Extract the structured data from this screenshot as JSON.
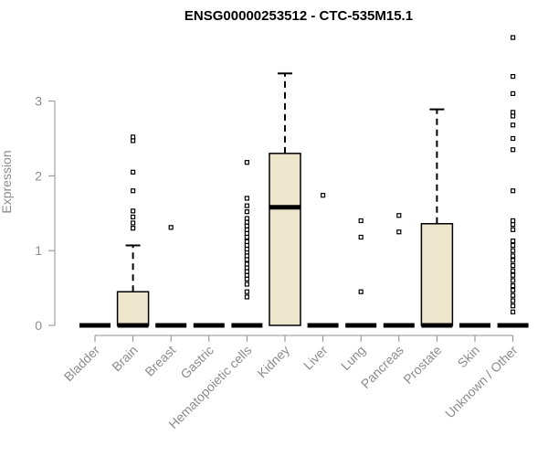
{
  "chart_data": {
    "type": "box",
    "title": "ENSG00000253512 - CTC-535M15.1",
    "xlabel": "",
    "ylabel": "Expression",
    "ylim": [
      0,
      3.9
    ],
    "yticks": [
      0,
      1,
      2,
      3
    ],
    "grid": false,
    "colors": {
      "box_fill": "#ede6cc",
      "box_stroke": "#000000",
      "axis": "#8c8c8c",
      "title": "#000000"
    },
    "categories": [
      "Bladder",
      "Brain",
      "Breast",
      "Gastric",
      "Hematopoietic cells",
      "Kidney",
      "Liver",
      "Lung",
      "Pancreas",
      "Prostate",
      "Skin",
      "Unknown / Other"
    ],
    "boxes": [
      {
        "category": "Bladder",
        "min": 0,
        "q1": 0,
        "median": 0,
        "q3": 0,
        "max": 0,
        "outliers": []
      },
      {
        "category": "Brain",
        "min": 0,
        "q1": 0,
        "median": 0,
        "q3": 0.45,
        "max": 1.07,
        "outliers": [
          1.3,
          1.37,
          1.45,
          1.53,
          1.8,
          2.05,
          2.47,
          2.52
        ]
      },
      {
        "category": "Breast",
        "min": 0,
        "q1": 0,
        "median": 0,
        "q3": 0,
        "max": 0,
        "outliers": [
          1.31
        ]
      },
      {
        "category": "Gastric",
        "min": 0,
        "q1": 0,
        "median": 0,
        "q3": 0,
        "max": 0,
        "outliers": []
      },
      {
        "category": "Hematopoietic cells",
        "min": 0,
        "q1": 0,
        "median": 0,
        "q3": 0,
        "max": 0,
        "outliers": [
          0.38,
          0.45,
          0.55,
          0.62,
          0.67,
          0.72,
          0.77,
          0.82,
          0.88,
          0.93,
          0.98,
          1.02,
          1.07,
          1.12,
          1.18,
          1.23,
          1.28,
          1.33,
          1.38,
          1.43,
          1.52,
          1.6,
          1.7,
          2.18
        ]
      },
      {
        "category": "Kidney",
        "min": 0,
        "q1": 0,
        "median": 1.58,
        "q3": 2.3,
        "max": 3.37,
        "outliers": []
      },
      {
        "category": "Liver",
        "min": 0,
        "q1": 0,
        "median": 0,
        "q3": 0,
        "max": 0,
        "outliers": [
          1.74
        ]
      },
      {
        "category": "Lung",
        "min": 0,
        "q1": 0,
        "median": 0,
        "q3": 0,
        "max": 0,
        "outliers": [
          0.45,
          1.18,
          1.4
        ]
      },
      {
        "category": "Pancreas",
        "min": 0,
        "q1": 0,
        "median": 0,
        "q3": 0,
        "max": 0,
        "outliers": [
          1.25,
          1.47
        ]
      },
      {
        "category": "Prostate",
        "min": 0,
        "q1": 0,
        "median": 0,
        "q3": 1.36,
        "max": 2.89,
        "outliers": []
      },
      {
        "category": "Skin",
        "min": 0,
        "q1": 0,
        "median": 0,
        "q3": 0,
        "max": 0,
        "outliers": []
      },
      {
        "category": "Unknown / Other",
        "min": 0,
        "q1": 0,
        "median": 0,
        "q3": 0,
        "max": 0,
        "outliers": [
          0.18,
          0.26,
          0.33,
          0.4,
          0.47,
          0.53,
          0.6,
          0.67,
          0.73,
          0.8,
          0.87,
          0.93,
          1.0,
          1.07,
          1.13,
          1.28,
          1.35,
          1.4,
          1.8,
          2.35,
          2.5,
          2.68,
          2.8,
          2.85,
          3.1,
          3.33,
          3.85
        ]
      }
    ]
  }
}
